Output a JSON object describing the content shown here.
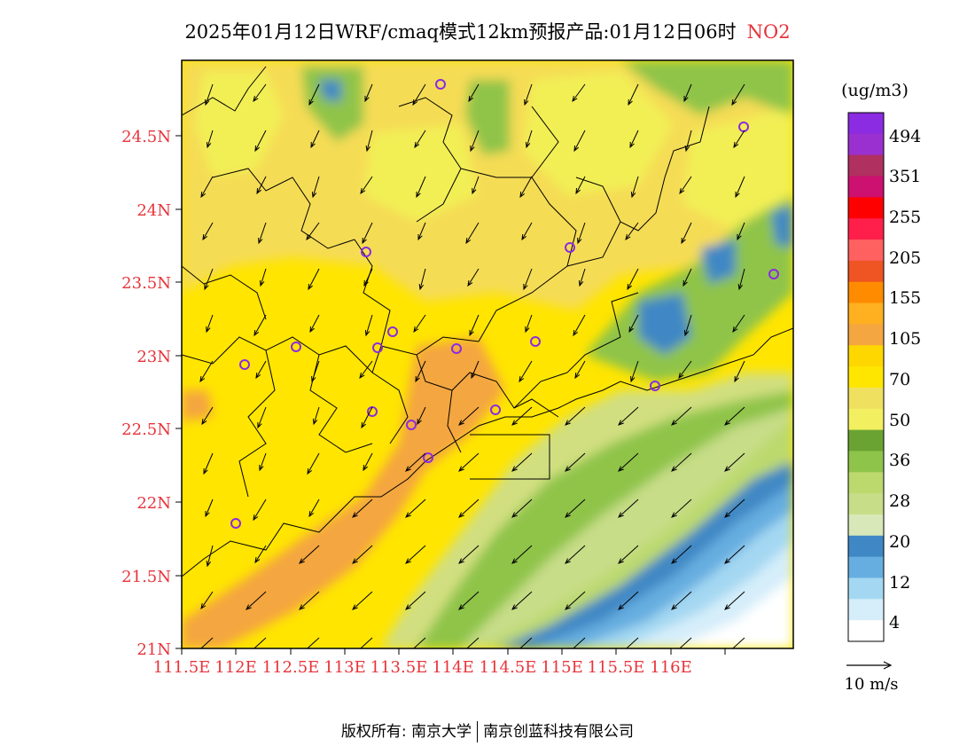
{
  "title": {
    "main": "2025年01月12日WRF/cmaq模式12km预报产品:01月12日06时",
    "species": "NO2"
  },
  "map": {
    "lat_labels": [
      "24.5N",
      "24N",
      "23.5N",
      "23N",
      "22.5N",
      "22N",
      "21.5N",
      "21N"
    ],
    "lon_labels": [
      "111.5E",
      "112E",
      "112.5E",
      "113E",
      "113.5E",
      "114E",
      "114.5E",
      "115E",
      "115.5E",
      "116E"
    ],
    "label_color": "#e8333a"
  },
  "legend": {
    "unit": "(ug/m3)",
    "labels": [
      "494",
      "351",
      "255",
      "205",
      "155",
      "105",
      "70",
      "50",
      "36",
      "28",
      "20",
      "12",
      "4"
    ],
    "colors": [
      "#8b2be2",
      "#9b30d0",
      "#b03060",
      "#cc1170",
      "#ff0000",
      "#ff1f4a",
      "#ff6060",
      "#ee5522",
      "#ff8c00",
      "#ffb020",
      "#f4a640",
      "#ffd700",
      "#ffe600",
      "#f0e060",
      "#f2f060",
      "#6aa332",
      "#8fc44a",
      "#bcd96e",
      "#c8dd88",
      "#d8e8b8",
      "#3f88c5",
      "#66aee0",
      "#a4d8f2",
      "#d6eefa",
      "#ffffff"
    ]
  },
  "wind_key": {
    "label": "10 m/s"
  },
  "footer": {
    "left": "版权所有: 南京大学",
    "right": "南京创蓝科技有限公司"
  }
}
